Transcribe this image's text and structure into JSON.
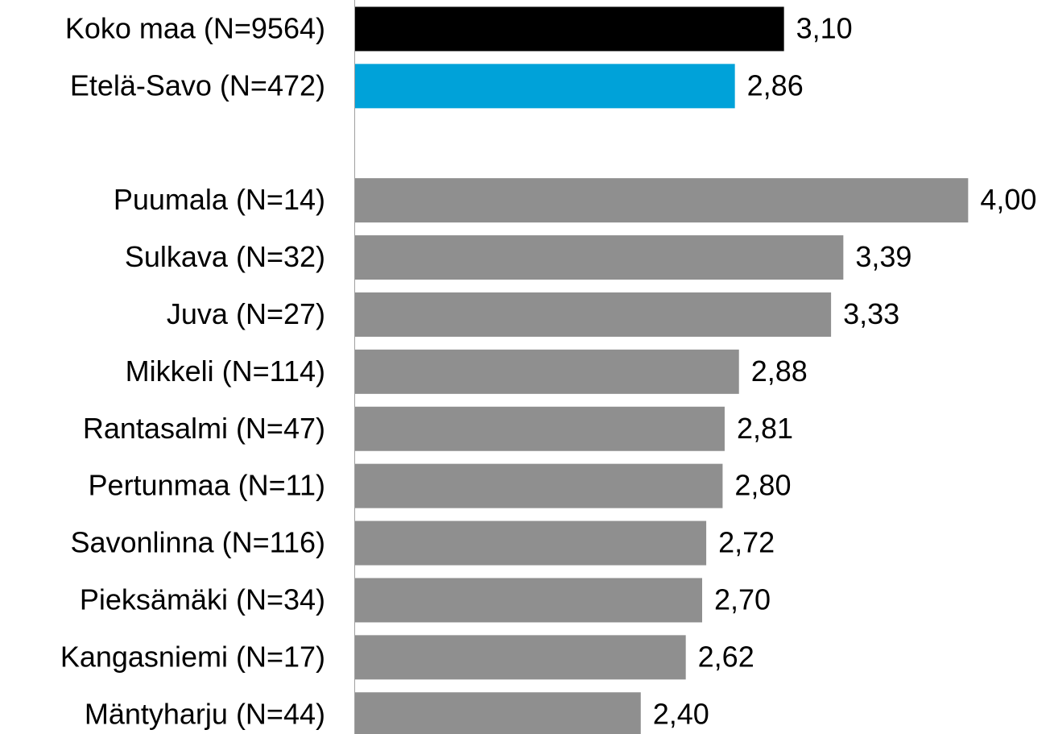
{
  "chart_data": {
    "type": "bar",
    "orientation": "horizontal",
    "categories": [
      "Koko maa (N=9564)",
      "Etelä-Savo (N=472)",
      null,
      "Puumala (N=14)",
      "Sulkava (N=32)",
      "Juva (N=27)",
      "Mikkeli  (N=114)",
      "Rantasalmi (N=47)",
      "Pertunmaa (N=11)",
      "Savonlinna  (N=116)",
      "Pieksämäki (N=34)",
      "Kangasniemi (N=17)",
      "Mäntyharju (N=44)"
    ],
    "values": [
      3.1,
      2.86,
      null,
      4.0,
      3.39,
      3.33,
      2.88,
      2.81,
      2.8,
      2.72,
      2.7,
      2.62,
      2.4
    ],
    "value_labels": [
      "3,10",
      "2,86",
      null,
      "4,00",
      "3,39",
      "3,33",
      "2,88",
      "2,81",
      "2,80",
      "2,72",
      "2,70",
      "2,62",
      "2,40"
    ],
    "colors": [
      "#000000",
      "#00a2d9",
      null,
      "#8f8f8f",
      "#8f8f8f",
      "#8f8f8f",
      "#8f8f8f",
      "#8f8f8f",
      "#8f8f8f",
      "#8f8f8f",
      "#8f8f8f",
      "#8f8f8f",
      "#8f8f8f"
    ],
    "xlim": [
      1,
      4.4
    ]
  }
}
